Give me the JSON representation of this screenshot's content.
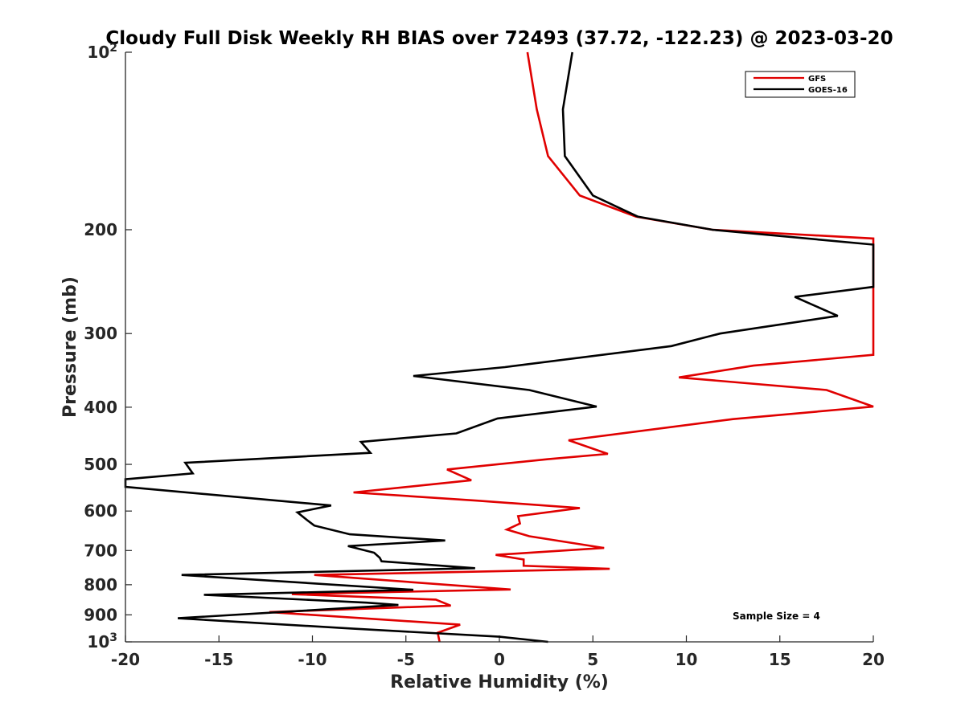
{
  "chart_data": {
    "type": "line",
    "title": "Cloudy Full Disk Weekly RH BIAS over 72493 (37.72, -122.23) @ 2023-03-20",
    "xlabel": "Relative Humidity (%)",
    "ylabel": "Pressure (mb)",
    "xlim": [
      -20,
      20
    ],
    "ylim": [
      100,
      1000
    ],
    "y_scale": "log",
    "y_reversed": true,
    "x_ticks": [
      -20,
      -15,
      -10,
      -5,
      0,
      5,
      10,
      15,
      20
    ],
    "y_ticks": [
      {
        "value": 100,
        "base": "10",
        "exp": "2"
      },
      {
        "value": 200,
        "label": "200"
      },
      {
        "value": 300,
        "label": "300"
      },
      {
        "value": 400,
        "label": "400"
      },
      {
        "value": 500,
        "label": "500"
      },
      {
        "value": 600,
        "label": "600"
      },
      {
        "value": 700,
        "label": "700"
      },
      {
        "value": 800,
        "label": "800"
      },
      {
        "value": 900,
        "label": "900"
      },
      {
        "value": 1000,
        "base": "10",
        "exp": "3"
      }
    ],
    "grid": false,
    "legend_position": "top-right",
    "annotation": "Sample Size = 4",
    "series": [
      {
        "name": "GFS",
        "color": "#e00000",
        "points": [
          [
            1.5,
            100
          ],
          [
            2.0,
            125
          ],
          [
            2.6,
            150
          ],
          [
            4.3,
            175
          ],
          [
            7.3,
            190
          ],
          [
            11.4,
            200
          ],
          [
            20.0,
            207
          ],
          [
            20.0,
            326
          ],
          [
            13.6,
            340
          ],
          [
            9.6,
            356
          ],
          [
            17.5,
            374
          ],
          [
            20.0,
            399
          ],
          [
            12.5,
            419
          ],
          [
            3.7,
            455
          ],
          [
            5.8,
            480
          ],
          [
            2.6,
            490
          ],
          [
            -2.8,
            510
          ],
          [
            -1.5,
            532
          ],
          [
            -7.8,
            558
          ],
          [
            -1.2,
            576
          ],
          [
            4.3,
            593
          ],
          [
            1.0,
            612
          ],
          [
            1.1,
            630
          ],
          [
            0.4,
            645
          ],
          [
            1.6,
            662
          ],
          [
            5.6,
            693
          ],
          [
            -0.2,
            712
          ],
          [
            1.3,
            725
          ],
          [
            1.3,
            743
          ],
          [
            5.9,
            752
          ],
          [
            2.5,
            756
          ],
          [
            -9.9,
            770
          ],
          [
            0.6,
            815
          ],
          [
            -11.1,
            830
          ],
          [
            -3.4,
            848
          ],
          [
            -2.6,
            868
          ],
          [
            -12.3,
            890
          ],
          [
            -2.1,
            935
          ],
          [
            -3.3,
            965
          ],
          [
            -3.2,
            1000
          ]
        ]
      },
      {
        "name": "GOES-16",
        "color": "#000000",
        "points": [
          [
            3.9,
            100
          ],
          [
            3.4,
            125
          ],
          [
            3.5,
            150
          ],
          [
            5.0,
            175
          ],
          [
            7.4,
            190
          ],
          [
            11.4,
            200
          ],
          [
            20.0,
            212
          ],
          [
            20.0,
            250
          ],
          [
            15.8,
            260
          ],
          [
            18.1,
            280
          ],
          [
            11.8,
            300
          ],
          [
            9.2,
            315
          ],
          [
            0.3,
            342
          ],
          [
            -4.6,
            354
          ],
          [
            1.6,
            374
          ],
          [
            5.2,
            399
          ],
          [
            -0.1,
            418
          ],
          [
            -2.3,
            443
          ],
          [
            -7.4,
            458
          ],
          [
            -6.9,
            478
          ],
          [
            -16.8,
            497
          ],
          [
            -16.4,
            518
          ],
          [
            -20.0,
            530
          ],
          [
            -20.0,
            546
          ],
          [
            -9.0,
            587
          ],
          [
            -10.8,
            603
          ],
          [
            -10.3,
            621
          ],
          [
            -9.9,
            635
          ],
          [
            -8.0,
            657
          ],
          [
            -2.9,
            673
          ],
          [
            -8.1,
            688
          ],
          [
            -6.7,
            706
          ],
          [
            -6.4,
            720
          ],
          [
            -6.3,
            730
          ],
          [
            -1.3,
            750
          ],
          [
            -17.0,
            770
          ],
          [
            -4.6,
            816
          ],
          [
            -15.8,
            832
          ],
          [
            -7.1,
            858
          ],
          [
            -5.4,
            866
          ],
          [
            -17.2,
            912
          ],
          [
            -7.8,
            950
          ],
          [
            0.0,
            980
          ],
          [
            2.6,
            1000
          ]
        ]
      }
    ]
  }
}
